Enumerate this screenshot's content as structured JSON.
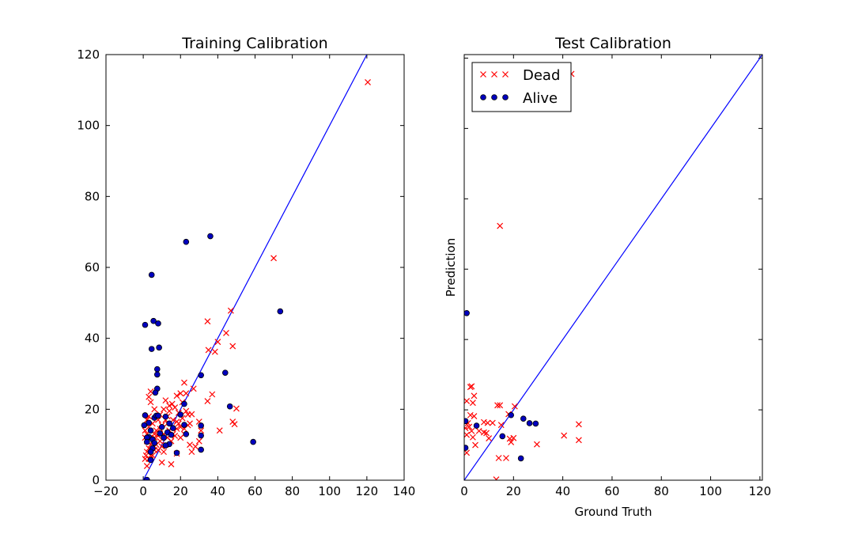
{
  "chart_data": [
    {
      "type": "scatter",
      "title": "Training Calibration",
      "xlabel": "",
      "ylabel": "",
      "xlim": [
        -20,
        140
      ],
      "ylim": [
        0,
        120
      ],
      "xticks": [
        -20,
        0,
        20,
        40,
        60,
        80,
        100,
        120,
        140
      ],
      "yticks": [
        0,
        20,
        40,
        60,
        80,
        100,
        120
      ],
      "xtick_labels": [
        "−20",
        "0",
        "20",
        "40",
        "60",
        "80",
        "100",
        "120",
        "140"
      ],
      "ytick_labels": [
        "0",
        "20",
        "40",
        "60",
        "80",
        "100",
        "120"
      ],
      "reference_line": {
        "x": [
          0,
          120
        ],
        "y": [
          0,
          120
        ],
        "color": "#0000ff"
      },
      "series": [
        {
          "marker": "x",
          "color": "#ff0000",
          "points": [
            [
              120.5,
              112.2
            ],
            [
              70,
              62.6
            ],
            [
              47,
              47.8
            ],
            [
              34.5,
              44.8
            ],
            [
              44.5,
              41.5
            ],
            [
              40,
              39
            ],
            [
              48,
              37.8
            ],
            [
              35,
              36.7
            ],
            [
              38.5,
              36.2
            ],
            [
              27,
              25.8
            ],
            [
              37,
              24.2
            ],
            [
              34.5,
              22.3
            ],
            [
              50,
              20.2
            ],
            [
              48,
              16.5
            ],
            [
              49,
              15.8
            ],
            [
              41,
              14
            ],
            [
              23,
              24.5
            ],
            [
              22,
              27.5
            ],
            [
              18,
              23.8
            ],
            [
              20,
              24.5
            ],
            [
              15.5,
              21.5
            ],
            [
              14,
              19.5
            ],
            [
              17,
              20.5
            ],
            [
              19,
              19
            ],
            [
              23,
              19.5
            ],
            [
              26,
              18.6
            ],
            [
              12,
              17
            ],
            [
              13,
              16
            ],
            [
              10,
              15.5
            ],
            [
              9,
              14.5
            ],
            [
              16,
              17
            ],
            [
              18,
              16.5
            ],
            [
              20,
              15
            ],
            [
              22,
              14.5
            ],
            [
              24,
              15.5
            ],
            [
              25,
              16
            ],
            [
              11,
              13
            ],
            [
              8,
              12.5
            ],
            [
              6,
              12
            ],
            [
              5,
              11
            ],
            [
              4,
              10
            ],
            [
              3,
              9
            ],
            [
              2,
              8
            ],
            [
              1.5,
              7
            ],
            [
              1,
              6
            ],
            [
              3,
              6
            ],
            [
              5,
              7
            ],
            [
              2,
              11
            ],
            [
              1,
              12
            ],
            [
              2,
              13
            ],
            [
              1,
              14
            ],
            [
              3,
              15
            ],
            [
              2,
              17
            ],
            [
              3,
              18
            ],
            [
              4,
              22
            ],
            [
              3,
              23.5
            ],
            [
              4,
              25
            ],
            [
              5,
              16
            ],
            [
              6,
              13
            ],
            [
              7,
              14
            ],
            [
              8,
              17
            ],
            [
              9,
              18.5
            ],
            [
              11,
              20
            ],
            [
              13,
              18
            ],
            [
              14,
              21
            ],
            [
              12,
              22.5
            ],
            [
              6,
              20
            ],
            [
              7,
              10
            ],
            [
              8,
              8.5
            ],
            [
              9,
              11
            ],
            [
              10,
              9.5
            ],
            [
              11,
              8
            ],
            [
              12,
              10
            ],
            [
              13,
              12
            ],
            [
              14,
              14
            ],
            [
              15,
              11
            ],
            [
              16,
              13
            ],
            [
              17,
              12.5
            ],
            [
              18,
              14.5
            ],
            [
              19,
              16
            ],
            [
              21,
              17.5
            ],
            [
              22,
              13
            ],
            [
              25,
              10
            ],
            [
              26,
              8
            ],
            [
              28,
              9.5
            ],
            [
              30,
              11
            ],
            [
              31,
              14
            ],
            [
              30,
              16.5
            ],
            [
              10,
              5
            ],
            [
              15,
              4.5
            ],
            [
              18,
              7.5
            ],
            [
              20,
              12
            ],
            [
              24,
              18.5
            ],
            [
              21,
              22
            ],
            [
              2,
              4
            ],
            [
              4,
              7
            ],
            [
              6,
              8.5
            ]
          ]
        },
        {
          "marker": "o",
          "color": "#0000bf",
          "points": [
            [
              36,
              68.8
            ],
            [
              23,
              67.2
            ],
            [
              4.5,
              57.9
            ],
            [
              73.5,
              47.6
            ],
            [
              5.5,
              44.9
            ],
            [
              1,
              43.8
            ],
            [
              8,
              44.2
            ],
            [
              4.5,
              37
            ],
            [
              8.5,
              37.4
            ],
            [
              7.5,
              31.3
            ],
            [
              7.5,
              29.8
            ],
            [
              31,
              29.6
            ],
            [
              44,
              30.3
            ],
            [
              7.5,
              25.8
            ],
            [
              6.5,
              24.7
            ],
            [
              46.5,
              20.8
            ],
            [
              22,
              21.5
            ],
            [
              31,
              15.4
            ],
            [
              31,
              12.6
            ],
            [
              59,
              10.8
            ],
            [
              31,
              8.6
            ],
            [
              18,
              7.7
            ],
            [
              4,
              5.7
            ],
            [
              2,
              0.1
            ],
            [
              1,
              18.3
            ],
            [
              6,
              17.6
            ],
            [
              7,
              18.2
            ],
            [
              8,
              18.2
            ],
            [
              12,
              17.9
            ],
            [
              20,
              18.5
            ],
            [
              14,
              16
            ],
            [
              10,
              15
            ],
            [
              4,
              14
            ],
            [
              3,
              12.2
            ],
            [
              2,
              12
            ],
            [
              5,
              11.5
            ],
            [
              6,
              10.5
            ],
            [
              13,
              13.5
            ],
            [
              15,
              12.8
            ],
            [
              16,
              14.7
            ],
            [
              22,
              15.6
            ],
            [
              23,
              13
            ],
            [
              0.5,
              15.5
            ],
            [
              3,
              16.2
            ],
            [
              9,
              13.2
            ],
            [
              11,
              12
            ],
            [
              14,
              10.2
            ],
            [
              12,
              9.8
            ],
            [
              5,
              9
            ],
            [
              2,
              10.8
            ],
            [
              4,
              8
            ]
          ]
        }
      ]
    },
    {
      "type": "scatter",
      "title": "Test Calibration",
      "xlabel": "Ground Truth",
      "ylabel": "Prediction",
      "xlim": [
        0,
        121
      ],
      "ylim": [
        0,
        121
      ],
      "xticks": [
        0,
        20,
        40,
        60,
        80,
        100,
        120
      ],
      "yticks": [
        0,
        20,
        40,
        60,
        80,
        100,
        120
      ],
      "xtick_labels": [
        "0",
        "20",
        "40",
        "60",
        "80",
        "100",
        "120"
      ],
      "ytick_labels": [],
      "legend": {
        "position": "top-left",
        "entries": [
          {
            "label": "Dead",
            "marker": "x",
            "color": "#ff0000"
          },
          {
            "label": "Alive",
            "marker": "o",
            "color": "#0000bf"
          }
        ]
      },
      "reference_line": {
        "x": [
          0,
          121
        ],
        "y": [
          0,
          121
        ],
        "color": "#0000ff"
      },
      "series": [
        {
          "name": "Dead",
          "marker": "x",
          "color": "#ff0000",
          "points": [
            [
              14.5,
              72.3
            ],
            [
              43.5,
              115.5
            ],
            [
              2.5,
              26.5
            ],
            [
              3,
              26.7
            ],
            [
              4,
              24
            ],
            [
              1,
              22.5
            ],
            [
              3.5,
              22
            ],
            [
              13.5,
              21.3
            ],
            [
              14.5,
              21.3
            ],
            [
              20.5,
              21
            ],
            [
              4,
              18.2
            ],
            [
              2.5,
              18.5
            ],
            [
              18,
              18.8
            ],
            [
              1.5,
              16.2
            ],
            [
              8,
              16.5
            ],
            [
              9.5,
              16.3
            ],
            [
              11.5,
              16.3
            ],
            [
              15,
              15.7
            ],
            [
              46.5,
              15.9
            ],
            [
              0.5,
              14.8
            ],
            [
              2,
              15.2
            ],
            [
              3,
              14
            ],
            [
              6,
              14
            ],
            [
              8,
              13.6
            ],
            [
              9,
              13.4
            ],
            [
              1,
              12.9
            ],
            [
              3.5,
              12.2
            ],
            [
              10,
              11.9
            ],
            [
              20,
              12
            ],
            [
              40.5,
              12.7
            ],
            [
              18.5,
              11.8
            ],
            [
              19,
              10.8
            ],
            [
              29.5,
              10.2
            ],
            [
              46.5,
              11.4
            ],
            [
              4.5,
              10
            ],
            [
              1,
              7.8
            ],
            [
              14,
              6.3
            ],
            [
              17,
              6.3
            ],
            [
              13,
              0.2
            ]
          ]
        },
        {
          "name": "Alive",
          "marker": "o",
          "color": "#0000bf",
          "points": [
            [
              1,
              47.5
            ],
            [
              0.5,
              16.8
            ],
            [
              19,
              18.5
            ],
            [
              24,
              17.5
            ],
            [
              26.5,
              16.2
            ],
            [
              29,
              16.1
            ],
            [
              5,
              15.5
            ],
            [
              15.5,
              12.5
            ],
            [
              23,
              6.2
            ],
            [
              0.5,
              9.2
            ]
          ]
        }
      ]
    }
  ]
}
